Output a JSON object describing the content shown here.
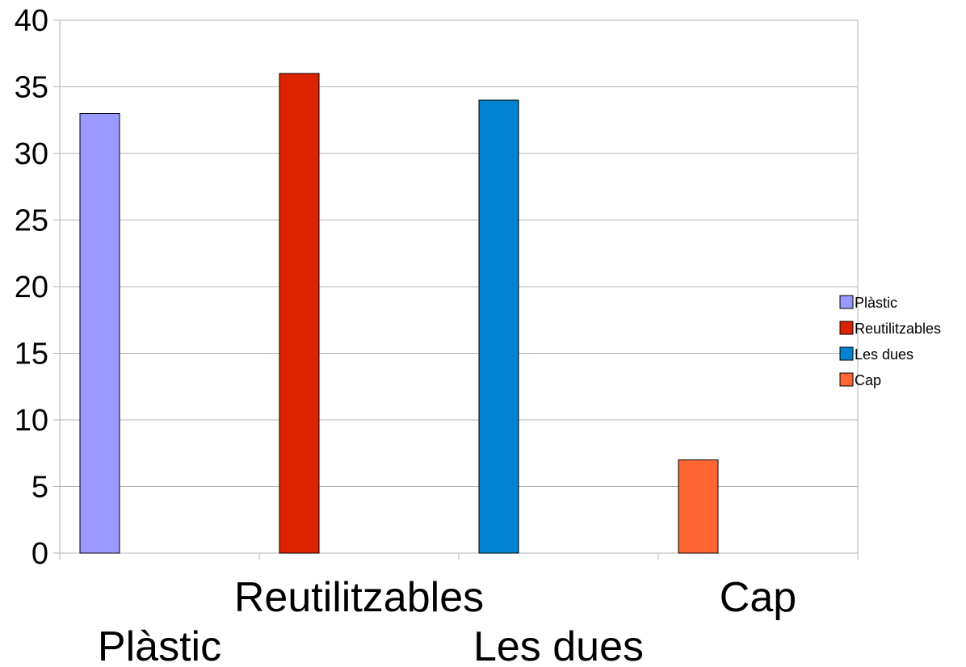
{
  "chart_data": {
    "type": "bar",
    "categories": [
      "Plàstic",
      "Reutilitzables",
      "Les dues",
      "Cap"
    ],
    "values": [
      33,
      36,
      34,
      7
    ],
    "colors": [
      "#9999ff",
      "#dc2300",
      "#0084d1",
      "#ff6633"
    ],
    "ylim": [
      0,
      40
    ],
    "yticks": [
      0,
      5,
      10,
      15,
      20,
      25,
      30,
      35,
      40
    ],
    "grid": true,
    "legend": {
      "position": "right",
      "entries": [
        "Plàstic",
        "Reutilitzables",
        "Les dues",
        "Cap"
      ]
    },
    "title": "",
    "xlabel": "",
    "ylabel": ""
  }
}
